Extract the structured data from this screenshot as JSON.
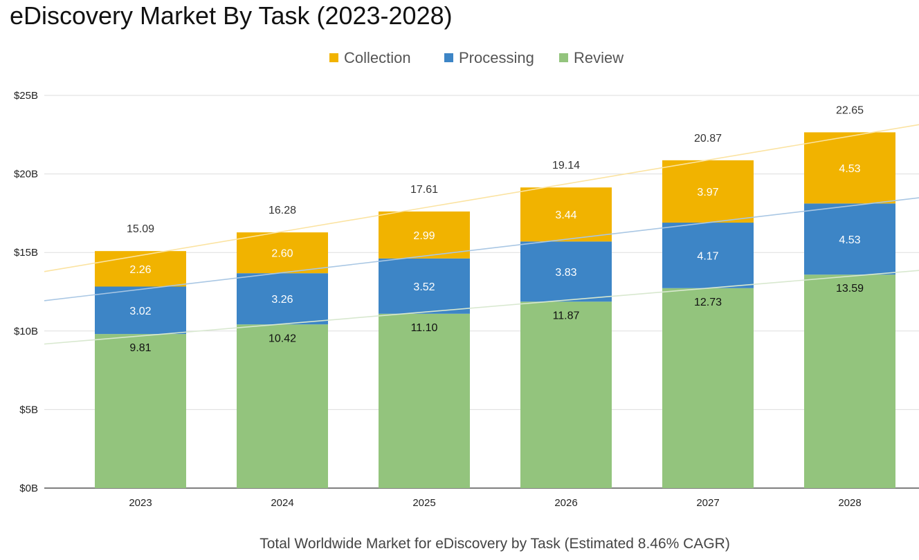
{
  "chart_data": {
    "type": "bar",
    "stacked": true,
    "title": "eDiscovery Market By Task (2023-2028)",
    "xlabel": "Total Worldwide Market for eDiscovery by Task (Estimated 8.46% CAGR)",
    "ylabel": "",
    "categories": [
      "2023",
      "2024",
      "2025",
      "2026",
      "2027",
      "2028"
    ],
    "series": [
      {
        "name": "Review",
        "color": "#93c47d",
        "label_color": "#111111",
        "values": [
          9.81,
          10.42,
          11.1,
          11.87,
          12.73,
          13.59
        ]
      },
      {
        "name": "Processing",
        "color": "#3d85c6",
        "label_color": "#ffffff",
        "values": [
          3.02,
          3.26,
          3.52,
          3.83,
          4.17,
          4.53
        ]
      },
      {
        "name": "Collection",
        "color": "#f1b300",
        "label_color": "#ffffff",
        "values": [
          2.26,
          2.6,
          2.99,
          3.44,
          3.97,
          4.53
        ]
      }
    ],
    "segment_labels": [
      [
        "9.81",
        "10.42",
        "11.10",
        "11.87",
        "12.73",
        "13.59"
      ],
      [
        "3.02",
        "3.26",
        "3.52",
        "3.83",
        "4.17",
        "4.53"
      ],
      [
        "2.26",
        "2.60",
        "2.99",
        "3.44",
        "3.97",
        "4.53"
      ]
    ],
    "totals": [
      "15.09",
      "16.28",
      "17.61",
      "19.14",
      "20.87",
      "22.65"
    ],
    "legend_order": [
      "Collection",
      "Processing",
      "Review"
    ],
    "legend_position": "top",
    "ylim": [
      0,
      25
    ],
    "yticks": [
      0,
      5,
      10,
      15,
      20,
      25
    ],
    "ytick_labels": [
      "$0B",
      "$5B",
      "$10B",
      "$15B",
      "$20B",
      "$25B"
    ],
    "grid": true,
    "trendlines": [
      {
        "series": "Collection",
        "color": "#fbe3a1"
      },
      {
        "series": "Processing",
        "color": "#a9c7e4"
      },
      {
        "series": "Review",
        "color": "#d8e8cf"
      }
    ]
  }
}
